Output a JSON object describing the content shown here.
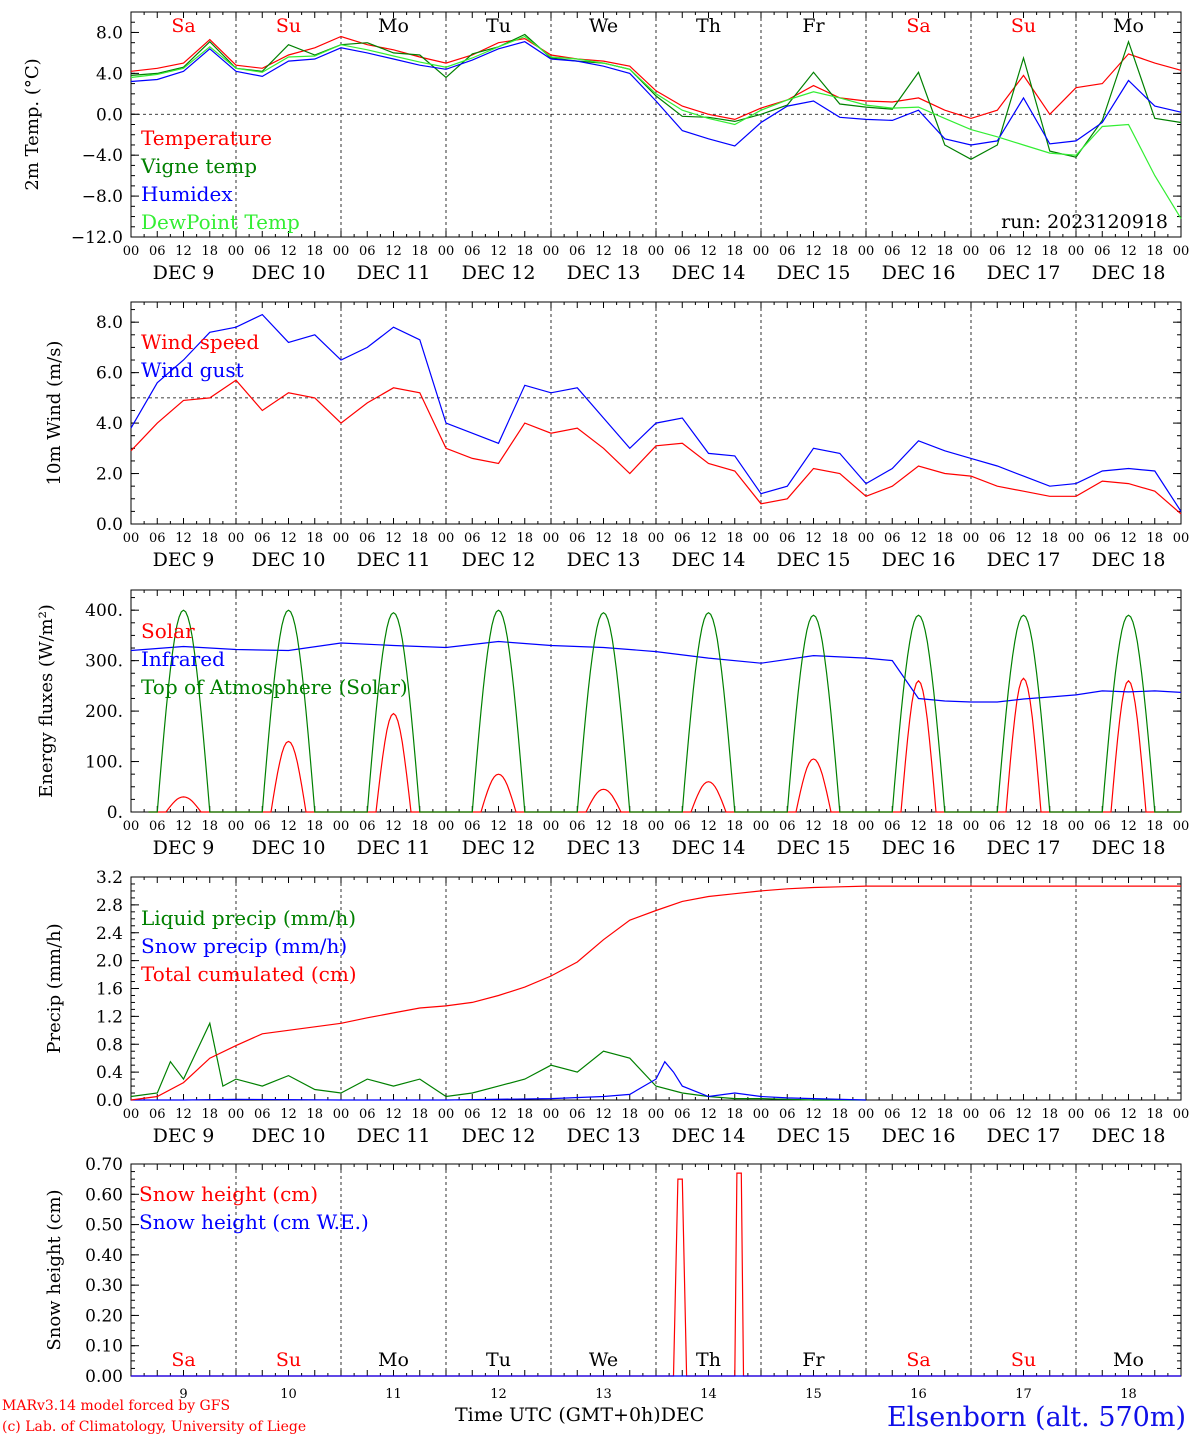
{
  "chart_data": [
    {
      "type": "line",
      "ylabel": "2m Temp. (°C)",
      "ylim": [
        -12,
        10
      ],
      "yticks": [
        "8.0",
        "4.0",
        "0.0",
        "−4.0",
        "−8.0",
        "−12.0"
      ],
      "ytick_values": [
        8,
        4,
        0,
        -4,
        -8,
        -12
      ],
      "dashed_ref": 0,
      "annotation": "run: 2023120918",
      "series": [
        {
          "name": "Temperature",
          "color": "#ff0000",
          "x": [
            0,
            6,
            12,
            18,
            24,
            30,
            36,
            42,
            48,
            54,
            60,
            66,
            72,
            78,
            84,
            90,
            96,
            102,
            108,
            114,
            120,
            126,
            132,
            138,
            144,
            150,
            156,
            162,
            168,
            174,
            180,
            186,
            192,
            198,
            204,
            210,
            216,
            222,
            228,
            234,
            240
          ],
          "y": [
            4.2,
            4.5,
            5.0,
            7.3,
            4.8,
            4.5,
            5.8,
            6.5,
            7.6,
            6.8,
            6.3,
            5.6,
            5.0,
            5.8,
            7.0,
            7.4,
            5.8,
            5.4,
            5.2,
            4.7,
            2.3,
            0.8,
            0.0,
            -0.5,
            0.6,
            1.4,
            2.8,
            1.6,
            1.3,
            1.2,
            1.6,
            0.4,
            -0.4,
            0.4,
            3.8,
            0.0,
            2.6,
            3.0,
            5.9,
            5.0,
            4.3
          ]
        },
        {
          "name": "Vigne temp",
          "color": "#008000",
          "x": [
            0,
            6,
            12,
            18,
            24,
            30,
            36,
            42,
            48,
            54,
            60,
            66,
            72,
            78,
            84,
            90,
            96,
            102,
            108,
            114,
            120,
            126,
            132,
            138,
            144,
            150,
            156,
            162,
            168,
            174,
            180,
            186,
            192,
            198,
            204,
            210,
            216,
            222,
            228,
            234,
            240
          ],
          "y": [
            3.8,
            4.0,
            4.6,
            7.1,
            4.5,
            4.2,
            6.8,
            5.8,
            6.8,
            7.0,
            6.0,
            5.8,
            3.6,
            5.9,
            6.6,
            7.8,
            5.5,
            5.2,
            5.0,
            4.4,
            1.8,
            -0.2,
            -0.3,
            -0.7,
            0.0,
            0.9,
            4.1,
            1.0,
            0.7,
            0.5,
            4.1,
            -3.0,
            -4.4,
            -3.0,
            5.5,
            -3.6,
            -4.2,
            -0.6,
            7.1,
            -0.4,
            -0.8
          ]
        },
        {
          "name": "Humidex",
          "color": "#0000ff",
          "x": [
            0,
            6,
            12,
            18,
            24,
            30,
            36,
            42,
            48,
            54,
            60,
            66,
            72,
            78,
            84,
            90,
            96,
            102,
            108,
            114,
            120,
            126,
            132,
            138,
            144,
            150,
            156,
            162,
            168,
            174,
            180,
            186,
            192,
            198,
            204,
            210,
            216,
            222,
            228,
            234,
            240
          ],
          "y": [
            3.2,
            3.4,
            4.2,
            6.4,
            4.2,
            3.7,
            5.2,
            5.4,
            6.5,
            6.0,
            5.4,
            4.8,
            4.4,
            5.3,
            6.4,
            7.1,
            5.4,
            5.2,
            4.7,
            4.0,
            1.3,
            -1.6,
            -2.4,
            -3.1,
            -0.8,
            0.8,
            1.3,
            -0.3,
            -0.5,
            -0.6,
            0.4,
            -2.4,
            -3.0,
            -2.6,
            1.6,
            -2.9,
            -2.6,
            -0.8,
            3.3,
            0.8,
            0.2
          ]
        },
        {
          "name": "DewPoint Temp",
          "color": "#33ee33",
          "x": [
            0,
            6,
            12,
            18,
            24,
            30,
            36,
            42,
            48,
            54,
            60,
            66,
            72,
            78,
            84,
            90,
            96,
            102,
            108,
            114,
            120,
            126,
            132,
            138,
            144,
            150,
            156,
            162,
            168,
            174,
            180,
            186,
            192,
            198,
            204,
            210,
            216,
            222,
            228,
            234,
            240
          ],
          "y": [
            3.6,
            3.9,
            4.5,
            6.6,
            4.5,
            4.1,
            5.6,
            5.7,
            6.8,
            6.3,
            5.7,
            5.1,
            4.6,
            5.5,
            6.6,
            7.6,
            5.6,
            5.4,
            5.0,
            4.4,
            2.0,
            0.4,
            -0.4,
            -1.0,
            0.4,
            1.4,
            2.2,
            1.6,
            0.9,
            0.6,
            0.7,
            -0.4,
            -1.5,
            -2.2,
            -3.0,
            -3.8,
            -4.0,
            -1.2,
            -1.0,
            -6.0,
            -10.2
          ]
        }
      ]
    },
    {
      "type": "line",
      "ylabel": "10m Wind (m/s)",
      "ylim": [
        0,
        8.8
      ],
      "yticks": [
        "8.0",
        "6.0",
        "4.0",
        "2.0",
        "0.0"
      ],
      "ytick_values": [
        8,
        6,
        4,
        2,
        0
      ],
      "dashed_ref": 5,
      "series": [
        {
          "name": "Wind speed",
          "color": "#ff0000",
          "x": [
            0,
            6,
            12,
            18,
            24,
            30,
            36,
            42,
            48,
            54,
            60,
            66,
            72,
            78,
            84,
            90,
            96,
            102,
            108,
            114,
            120,
            126,
            132,
            138,
            144,
            150,
            156,
            162,
            168,
            174,
            180,
            186,
            192,
            198,
            204,
            210,
            216,
            222,
            228,
            234,
            240
          ],
          "y": [
            2.9,
            4.0,
            4.9,
            5.0,
            5.7,
            4.5,
            5.2,
            5.0,
            4.0,
            4.8,
            5.4,
            5.2,
            3.0,
            2.6,
            2.4,
            4.0,
            3.6,
            3.8,
            3.0,
            2.0,
            3.1,
            3.2,
            2.4,
            2.1,
            0.8,
            1.0,
            2.2,
            2.0,
            1.1,
            1.5,
            2.3,
            2.0,
            1.9,
            1.5,
            1.3,
            1.1,
            1.1,
            1.7,
            1.6,
            1.3,
            0.4
          ]
        },
        {
          "name": "Wind gust",
          "color": "#0000ff",
          "x": [
            0,
            6,
            12,
            18,
            24,
            30,
            36,
            42,
            48,
            54,
            60,
            66,
            72,
            78,
            84,
            90,
            96,
            102,
            108,
            114,
            120,
            126,
            132,
            138,
            144,
            150,
            156,
            162,
            168,
            174,
            180,
            186,
            192,
            198,
            204,
            210,
            216,
            222,
            228,
            234,
            240
          ],
          "y": [
            3.8,
            5.6,
            6.5,
            7.6,
            7.8,
            8.3,
            7.2,
            7.5,
            6.5,
            7.0,
            7.8,
            7.3,
            4.0,
            3.6,
            3.2,
            5.5,
            5.2,
            5.4,
            4.2,
            3.0,
            4.0,
            4.2,
            2.8,
            2.7,
            1.2,
            1.5,
            3.0,
            2.8,
            1.6,
            2.2,
            3.3,
            2.9,
            2.6,
            2.3,
            1.9,
            1.5,
            1.6,
            2.1,
            2.2,
            2.1,
            0.5
          ]
        }
      ]
    },
    {
      "type": "line",
      "ylabel": "Energy fluxes (W/m²)",
      "ylim": [
        0,
        440
      ],
      "yticks": [
        "400.",
        "300.",
        "200.",
        "100.",
        "0."
      ],
      "ytick_values": [
        400,
        300,
        200,
        100,
        0
      ],
      "series": [
        {
          "name": "Solar",
          "color": "#ff0000",
          "peaks": [
            30,
            140,
            195,
            75,
            45,
            60,
            105,
            260,
            265,
            260
          ]
        },
        {
          "name": "Infrared",
          "color": "#0000ff",
          "x": [
            0,
            12,
            24,
            36,
            48,
            60,
            72,
            84,
            96,
            108,
            120,
            132,
            144,
            156,
            168,
            174,
            180,
            186,
            192,
            198,
            204,
            210,
            216,
            222,
            228,
            234,
            240
          ],
          "y": [
            320,
            328,
            322,
            320,
            335,
            330,
            326,
            338,
            330,
            326,
            318,
            305,
            295,
            310,
            305,
            300,
            225,
            220,
            218,
            218,
            224,
            228,
            232,
            240,
            238,
            240,
            237
          ]
        },
        {
          "name": "Top of Atmosphere (Solar)",
          "color": "#008000",
          "peaks": [
            400,
            400,
            395,
            400,
            395,
            395,
            390,
            390,
            390,
            390
          ]
        }
      ]
    },
    {
      "type": "line",
      "ylabel": "Precip (mm/h)",
      "ylim": [
        0,
        3.2
      ],
      "yticks": [
        "3.2",
        "2.8",
        "2.4",
        "2.0",
        "1.6",
        "1.2",
        "0.8",
        "0.4",
        "0.0"
      ],
      "ytick_values": [
        3.2,
        2.8,
        2.4,
        2.0,
        1.6,
        1.2,
        0.8,
        0.4,
        0.0
      ],
      "series": [
        {
          "name": "Liquid precip (mm/h)",
          "color": "#008000",
          "x": [
            0,
            6,
            9,
            12,
            15,
            18,
            21,
            24,
            30,
            36,
            42,
            48,
            54,
            60,
            66,
            72,
            78,
            84,
            90,
            96,
            102,
            108,
            114,
            120,
            126,
            132,
            138,
            144,
            150,
            156,
            162,
            168
          ],
          "y": [
            0.05,
            0.1,
            0.55,
            0.3,
            0.7,
            1.1,
            0.2,
            0.3,
            0.2,
            0.35,
            0.15,
            0.1,
            0.3,
            0.2,
            0.3,
            0.05,
            0.1,
            0.2,
            0.3,
            0.5,
            0.4,
            0.7,
            0.6,
            0.2,
            0.1,
            0.05,
            0.02,
            0.02,
            0.01,
            0.0,
            0.0,
            0.0
          ]
        },
        {
          "name": "Snow precip (mm/h)",
          "color": "#0000ff",
          "x": [
            0,
            12,
            24,
            48,
            72,
            96,
            108,
            114,
            120,
            122,
            124,
            126,
            132,
            138,
            144,
            150,
            156,
            168
          ],
          "y": [
            0.0,
            0.0,
            0.01,
            0.0,
            0.0,
            0.02,
            0.05,
            0.08,
            0.3,
            0.55,
            0.4,
            0.2,
            0.05,
            0.1,
            0.05,
            0.03,
            0.02,
            0.0
          ]
        },
        {
          "name": "Total cumulated (cm)",
          "color": "#ff0000",
          "x": [
            0,
            6,
            12,
            18,
            24,
            30,
            36,
            42,
            48,
            54,
            60,
            66,
            72,
            78,
            84,
            90,
            96,
            102,
            108,
            114,
            120,
            126,
            132,
            138,
            144,
            150,
            156,
            162,
            168,
            180,
            192,
            204,
            216,
            228,
            240
          ],
          "y": [
            0.0,
            0.05,
            0.25,
            0.6,
            0.78,
            0.95,
            1.0,
            1.05,
            1.1,
            1.18,
            1.25,
            1.32,
            1.35,
            1.4,
            1.5,
            1.62,
            1.78,
            1.98,
            2.3,
            2.58,
            2.72,
            2.85,
            2.92,
            2.96,
            3.0,
            3.03,
            3.05,
            3.06,
            3.07,
            3.07,
            3.07,
            3.07,
            3.07,
            3.07,
            3.07
          ]
        }
      ]
    },
    {
      "type": "line",
      "ylabel": "Snow height (cm)",
      "ylim": [
        0,
        0.7
      ],
      "yticks": [
        "0.70",
        "0.60",
        "0.50",
        "0.40",
        "0.30",
        "0.20",
        "0.10",
        "0.00"
      ],
      "ytick_values": [
        0.7,
        0.6,
        0.5,
        0.4,
        0.3,
        0.2,
        0.1,
        0.0
      ],
      "series": [
        {
          "name": "Snow height (cm)",
          "color": "#ff0000",
          "x": [
            0,
            124,
            125,
            126,
            127,
            138,
            138.5,
            139.5,
            140,
            240
          ],
          "y": [
            0,
            0,
            0.65,
            0.65,
            0,
            0,
            0.67,
            0.67,
            0,
            0
          ]
        },
        {
          "name": "Snow height (cm W.E.)",
          "color": "#0000ff",
          "x": [
            0,
            240
          ],
          "y": [
            0,
            0
          ]
        }
      ]
    }
  ],
  "days": [
    {
      "abbr": "Sa",
      "weekend": true,
      "date": "DEC  9",
      "num": "9"
    },
    {
      "abbr": "Su",
      "weekend": true,
      "date": "DEC 10",
      "num": "10"
    },
    {
      "abbr": "Mo",
      "weekend": false,
      "date": "DEC 11",
      "num": "11"
    },
    {
      "abbr": "Tu",
      "weekend": false,
      "date": "DEC 12",
      "num": "12"
    },
    {
      "abbr": "We",
      "weekend": false,
      "date": "DEC 13",
      "num": "13"
    },
    {
      "abbr": "Th",
      "weekend": false,
      "date": "DEC 14",
      "num": "14"
    },
    {
      "abbr": "Fr",
      "weekend": false,
      "date": "DEC 15",
      "num": "15"
    },
    {
      "abbr": "Sa",
      "weekend": true,
      "date": "DEC 16",
      "num": "16"
    },
    {
      "abbr": "Su",
      "weekend": true,
      "date": "DEC 17",
      "num": "17"
    },
    {
      "abbr": "Mo",
      "weekend": false,
      "date": "DEC 18",
      "num": "18"
    }
  ],
  "hour_labels": [
    "00",
    "06",
    "12",
    "18"
  ],
  "final_hour_label": "00",
  "footer": {
    "model_line": "MARv3.14 model forced by GFS",
    "copyright_line": "(c) Lab. of Climatology, University of Liege",
    "xlabel": "Time UTC (GMT+0h)",
    "month": "DEC",
    "station": "Elsenborn (alt. 570m)"
  },
  "colors": {
    "weekend": "#ff0000",
    "weekday": "#000000",
    "station": "#1010e8"
  }
}
